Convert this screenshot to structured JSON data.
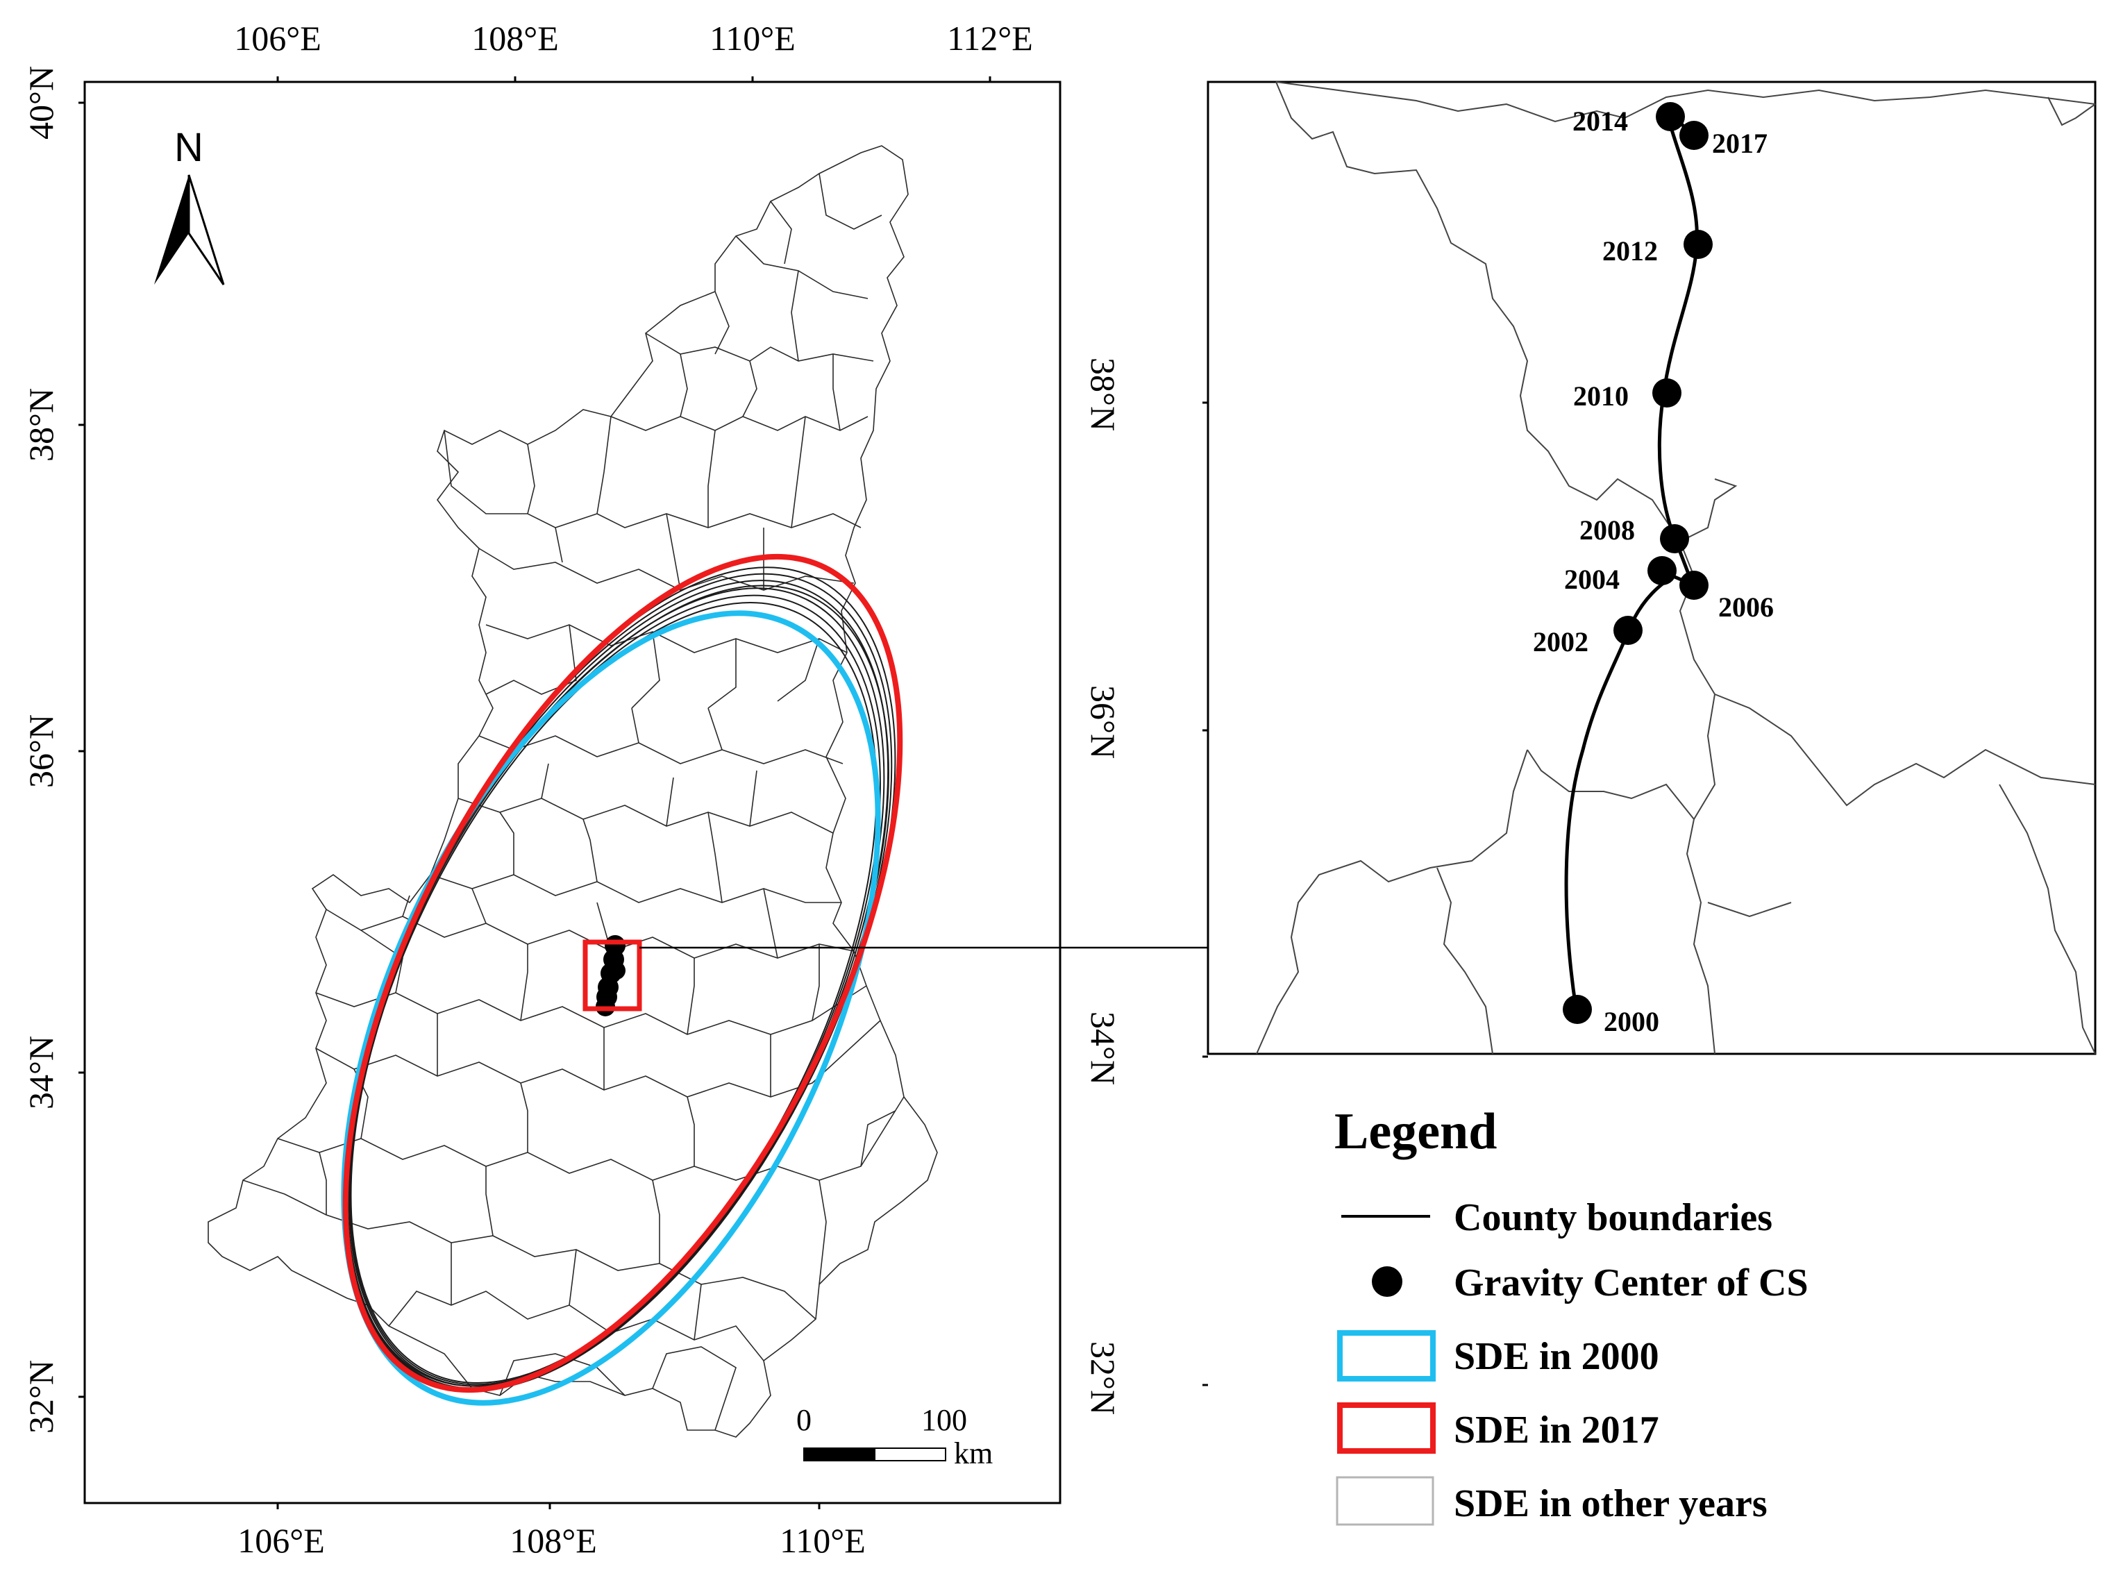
{
  "main_map": {
    "top_ticks": [
      "106°E",
      "108°E",
      "110°E",
      "112°E"
    ],
    "bottom_ticks": [
      "106°E",
      "108°E",
      "110°E"
    ],
    "left_ticks": [
      "40°N",
      "38°N",
      "36°N",
      "34°N",
      "32°N"
    ],
    "north_label": "N",
    "scale_bar": {
      "start": "0",
      "end": "100",
      "unit": "km"
    }
  },
  "inset": {
    "right_ticks": [
      "38°N",
      "36°N",
      "34°N",
      "32°N"
    ],
    "points": [
      {
        "year": "2000"
      },
      {
        "year": "2002"
      },
      {
        "year": "2004"
      },
      {
        "year": "2006"
      },
      {
        "year": "2008"
      },
      {
        "year": "2010"
      },
      {
        "year": "2012"
      },
      {
        "year": "2014"
      },
      {
        "year": "2017"
      }
    ]
  },
  "legend": {
    "title": "Legend",
    "items": [
      {
        "label": "County boundaries",
        "symbol": "line",
        "color": "#000000"
      },
      {
        "label": "Gravity Center of CS",
        "symbol": "dot",
        "color": "#000000"
      },
      {
        "label": "SDE in 2000",
        "symbol": "box",
        "color": "#1fbef0"
      },
      {
        "label": "SDE in 2017",
        "symbol": "box",
        "color": "#ee1c1c"
      },
      {
        "label": "SDE in other years",
        "symbol": "box",
        "color": "#b5b5b5"
      }
    ]
  }
}
